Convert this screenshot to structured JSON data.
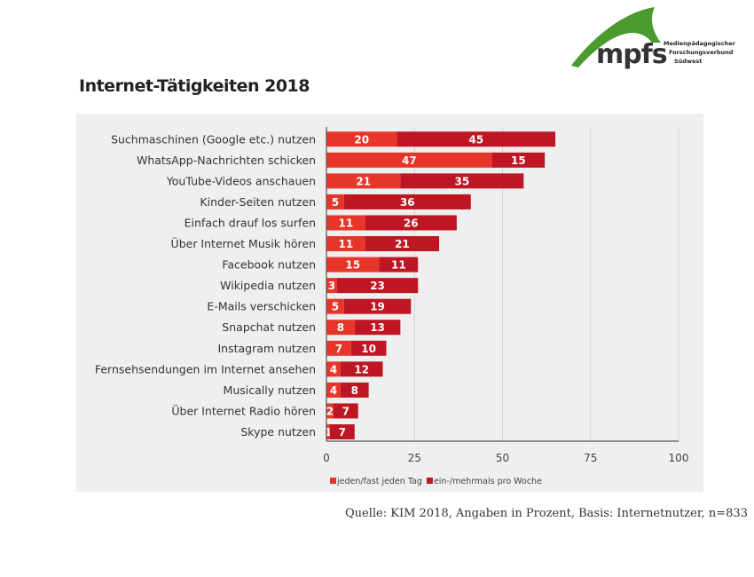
{
  "logo": {
    "brand": "mpfs",
    "subtitle_lines": [
      "Medienpädagogischer",
      "Forschungsverbund",
      "Südwest"
    ],
    "color": "#4a9a2e"
  },
  "page_title": "Internet-Tätigkeiten 2018",
  "source_note": "Quelle: KIM 2018, Angaben in Prozent, Basis: Internetnutzer, n=833",
  "colors": {
    "daily": "#e8352a",
    "weekly": "#be1622",
    "panel": "#efefef"
  },
  "chart_data": {
    "type": "bar",
    "orientation": "horizontal",
    "stacked": true,
    "title": "Internet-Tätigkeiten 2018",
    "xlabel": "",
    "ylabel": "",
    "xlim": [
      0,
      100
    ],
    "xticks": [
      0,
      25,
      50,
      75,
      100
    ],
    "grid": true,
    "legend_position": "bottom-left",
    "categories": [
      "Suchmaschinen (Google etc.) nutzen",
      "WhatsApp-Nachrichten schicken",
      "YouTube-Videos anschauen",
      "Kinder-Seiten nutzen",
      "Einfach drauf los surfen",
      "Über Internet Musik hören",
      "Facebook nutzen",
      "Wikipedia nutzen",
      "E-Mails verschicken",
      "Snapchat nutzen",
      "Instagram nutzen",
      "Fernsehsendungen im Internet ansehen",
      "Musically nutzen",
      "Über Internet Radio hören",
      "Skype nutzen"
    ],
    "series": [
      {
        "name": "jeden/fast jeden Tag",
        "color": "#e8352a",
        "values": [
          20,
          47,
          21,
          5,
          11,
          11,
          15,
          3,
          5,
          8,
          7,
          4,
          4,
          2,
          1
        ]
      },
      {
        "name": "ein-/mehrmals pro Woche",
        "color": "#be1622",
        "values": [
          45,
          15,
          35,
          36,
          26,
          21,
          11,
          23,
          19,
          13,
          10,
          12,
          8,
          7,
          7
        ]
      }
    ]
  }
}
